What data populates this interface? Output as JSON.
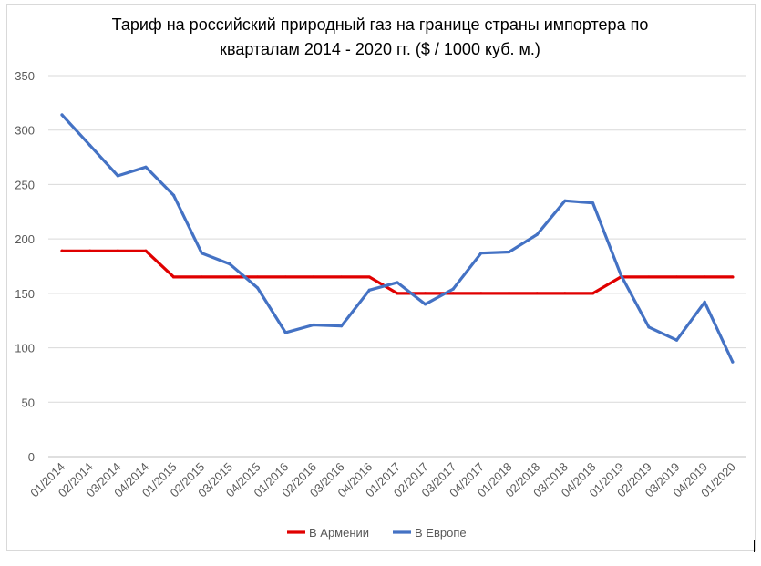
{
  "chart_data": {
    "type": "line",
    "title_lines": [
      "Тариф на российский природный газ на границе страны импортера по",
      "кварталам 2014 - 2020 гг. ($ / 1000 куб. м.)"
    ],
    "xlabel": "",
    "ylabel": "",
    "ylim": [
      0,
      350
    ],
    "yticks": [
      0,
      50,
      100,
      150,
      200,
      250,
      300,
      350
    ],
    "grid": true,
    "legend_position": "bottom",
    "categories": [
      "01/2014",
      "02/2014",
      "03/2014",
      "04/2014",
      "01/2015",
      "02/2015",
      "03/2015",
      "04/2015",
      "01/2016",
      "02/2016",
      "03/2016",
      "04/2016",
      "01/2017",
      "02/2017",
      "03/2017",
      "04/2017",
      "01/2018",
      "02/2018",
      "03/2018",
      "04/2018",
      "01/2019",
      "02/2019",
      "03/2019",
      "04/2019",
      "01/2020"
    ],
    "series": [
      {
        "name": "В Армении",
        "color": "#e00000",
        "values": [
          189,
          189,
          189,
          189,
          165,
          165,
          165,
          165,
          165,
          165,
          165,
          165,
          150,
          150,
          150,
          150,
          150,
          150,
          150,
          150,
          165,
          165,
          165,
          165,
          165
        ]
      },
      {
        "name": "В Европе",
        "color": "#4472c4",
        "values": [
          314,
          286,
          258,
          266,
          240,
          187,
          177,
          155,
          114,
          121,
          120,
          153,
          160,
          140,
          154,
          187,
          188,
          204,
          235,
          233,
          167,
          119,
          107,
          142,
          87
        ]
      }
    ]
  }
}
